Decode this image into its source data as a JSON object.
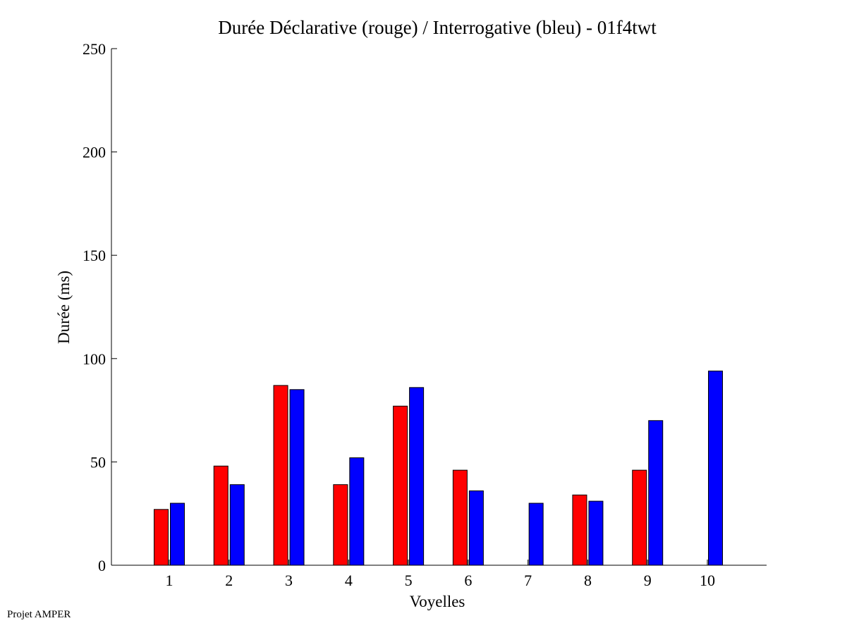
{
  "footer": {
    "text": "Projet AMPER"
  },
  "chart_data": {
    "type": "bar",
    "title": "Durée Déclarative (rouge) / Interrogative (bleu) - 01f4twt",
    "xlabel": "Voyelles",
    "ylabel": "Durée (ms)",
    "categories": [
      "1",
      "2",
      "3",
      "4",
      "5",
      "6",
      "7",
      "8",
      "9",
      "10"
    ],
    "ylim": [
      0,
      250
    ],
    "yticks": [
      "0",
      "50",
      "100",
      "150",
      "200",
      "250"
    ],
    "grid": false,
    "series": [
      {
        "color": "#ff0000",
        "values": [
          27,
          48,
          87,
          39,
          77,
          46,
          null,
          34,
          46,
          null
        ]
      },
      {
        "color": "#0000ff",
        "values": [
          30,
          39,
          85,
          52,
          86,
          36,
          30,
          31,
          70,
          94
        ]
      }
    ]
  }
}
